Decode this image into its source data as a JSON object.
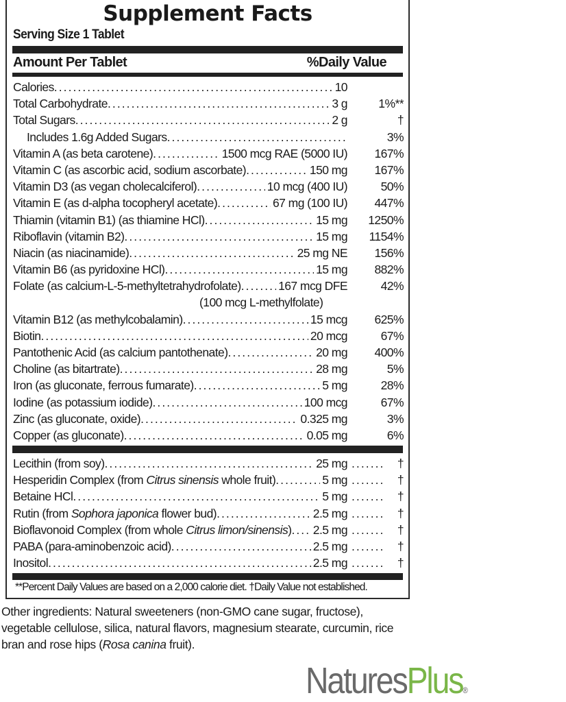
{
  "panel": {
    "title": "Supplement Facts",
    "serving_size": "Serving Size 1 Tablet",
    "header_amount": "Amount Per Tablet",
    "header_dv": "%Daily Value",
    "nutrients": [
      {
        "name": "Calories",
        "amount": "10",
        "dv": ""
      },
      {
        "name": "Total Carbohydrate",
        "amount": "3 g",
        "dv": "1%**"
      },
      {
        "name": "Total Sugars",
        "amount": "2 g",
        "dv": "†"
      },
      {
        "name": "Includes 1.6g Added Sugars",
        "amount": "",
        "dv": "3%",
        "indent": true
      },
      {
        "name": "Vitamin A (as beta carotene)",
        "amount": "1500 mcg RAE (5000 IU)",
        "dv": "167%"
      },
      {
        "name": "Vitamin C (as ascorbic acid, sodium ascorbate)",
        "amount": "150 mg",
        "dv": "167%"
      },
      {
        "name": "Vitamin D3 (as vegan cholecalciferol)",
        "amount": "10 mcg (400 IU)",
        "dv": "50%"
      },
      {
        "name": "Vitamin E (as d-alpha tocopheryl acetate)",
        "amount": "67 mg (100 IU)",
        "dv": "447%"
      },
      {
        "name": "Thiamin (vitamin B1) (as thiamine HCl)",
        "amount": "15 mg",
        "dv": "1250%"
      },
      {
        "name": "Riboflavin (vitamin B2)",
        "amount": "15 mg",
        "dv": "1154%"
      },
      {
        "name": "Niacin (as niacinamide)",
        "amount": "25 mg NE",
        "dv": "156%"
      },
      {
        "name": "Vitamin B6 (as pyridoxine HCl)",
        "amount": "15 mg",
        "dv": "882%"
      },
      {
        "name": "Folate (as calcium-L-5-methyltetrahydrofolate)",
        "amount": "167 mcg DFE",
        "dv": "42%",
        "continuation": "(100 mcg L-methylfolate)"
      },
      {
        "name": "Vitamin B12 (as methylcobalamin)",
        "amount": "15 mcg",
        "dv": "625%"
      },
      {
        "name": "Biotin",
        "amount": "20 mcg",
        "dv": "67%"
      },
      {
        "name": "Pantothenic Acid (as calcium pantothenate)",
        "amount": "20 mg",
        "dv": "400%"
      },
      {
        "name": "Choline (as bitartrate)",
        "amount": "28 mg",
        "dv": "5%"
      },
      {
        "name": "Iron (as gluconate, ferrous fumarate)",
        "amount": "5 mg",
        "dv": "28%"
      },
      {
        "name": "Iodine (as potassium iodide)",
        "amount": "100 mcg",
        "dv": "67%"
      },
      {
        "name": "Zinc (as gluconate, oxide)",
        "amount": "0.325 mg",
        "dv": "3%"
      },
      {
        "name": "Copper (as gluconate)",
        "amount": "0.05 mg",
        "dv": "6%"
      }
    ],
    "other_nutrients": [
      {
        "name": "Lecithin (from soy)",
        "amount": "25 mg",
        "dv": "†"
      },
      {
        "name": "Hesperidin Complex (from ",
        "italic": "Citrus sinensis",
        "name_post": " whole fruit)",
        "amount": "5 mg",
        "dv": "†"
      },
      {
        "name": "Betaine HCl",
        "amount": "5 mg",
        "dv": "†"
      },
      {
        "name": "Rutin (from ",
        "italic": "Sophora japonica",
        "name_post": " flower bud)",
        "amount": "2.5 mg",
        "dv": "†"
      },
      {
        "name": "Bioflavonoid Complex (from whole ",
        "italic": "Citrus limon/sinensis",
        "name_post": ")",
        "amount": "2.5 mg",
        "dv": "†"
      },
      {
        "name": "PABA (para-aminobenzoic acid)",
        "amount": "2.5 mg",
        "dv": "†"
      },
      {
        "name": "Inositol",
        "amount": "2.5 mg",
        "dv": "†"
      }
    ],
    "footnote": "**Percent Daily Values are based on a 2,000 calorie diet.   †Daily Value not established."
  },
  "other_ingredients": {
    "pre": "Other ingredients: Natural sweeteners (non-GMO cane sugar, fructose), vegetable cellulose, silica, natural flavors, magnesium stearate, curcumin, rice bran and rose hips (",
    "italic": "Rosa canina",
    "post": " fruit)."
  },
  "logo": {
    "part1": "Natures",
    "part2": "Plus",
    "mark": "®",
    "colors": {
      "natures": "#6a6a6a",
      "plus": "#7ab648"
    }
  }
}
